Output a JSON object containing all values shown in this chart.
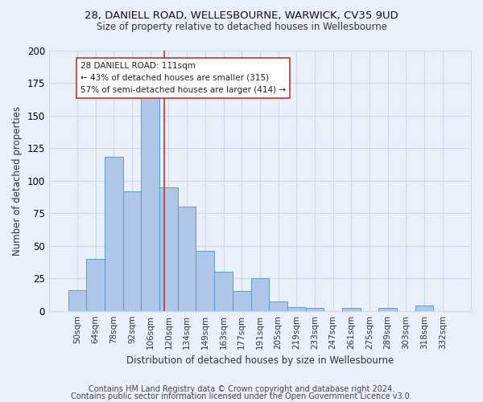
{
  "title1": "28, DANIELL ROAD, WELLESBOURNE, WARWICK, CV35 9UD",
  "title2": "Size of property relative to detached houses in Wellesbourne",
  "xlabel": "Distribution of detached houses by size in Wellesbourne",
  "ylabel": "Number of detached properties",
  "footer1": "Contains HM Land Registry data © Crown copyright and database right 2024.",
  "footer2": "Contains public sector information licensed under the Open Government Licence v3.0.",
  "categories": [
    "50sqm",
    "64sqm",
    "78sqm",
    "92sqm",
    "106sqm",
    "120sqm",
    "134sqm",
    "149sqm",
    "163sqm",
    "177sqm",
    "191sqm",
    "205sqm",
    "219sqm",
    "233sqm",
    "247sqm",
    "261sqm",
    "275sqm",
    "289sqm",
    "303sqm",
    "318sqm",
    "332sqm"
  ],
  "values": [
    16,
    40,
    118,
    92,
    167,
    95,
    80,
    46,
    30,
    15,
    25,
    7,
    3,
    2,
    0,
    2,
    0,
    2,
    0,
    4,
    0
  ],
  "bar_color": "#aec6e8",
  "bar_edge_color": "#5b9bd5",
  "grid_color": "#d0d8e8",
  "bg_color": "#eaf0fb",
  "annotation_line1": "28 DANIELL ROAD: 111sqm",
  "annotation_line2": "← 43% of detached houses are smaller (315)",
  "annotation_line3": "57% of semi-detached houses are larger (414) →",
  "vline_color": "#c0392b",
  "annotation_box_color": "#ffffff",
  "annotation_box_edge": "#c0392b",
  "ylim": [
    0,
    200
  ],
  "vline_x": 4.78
}
